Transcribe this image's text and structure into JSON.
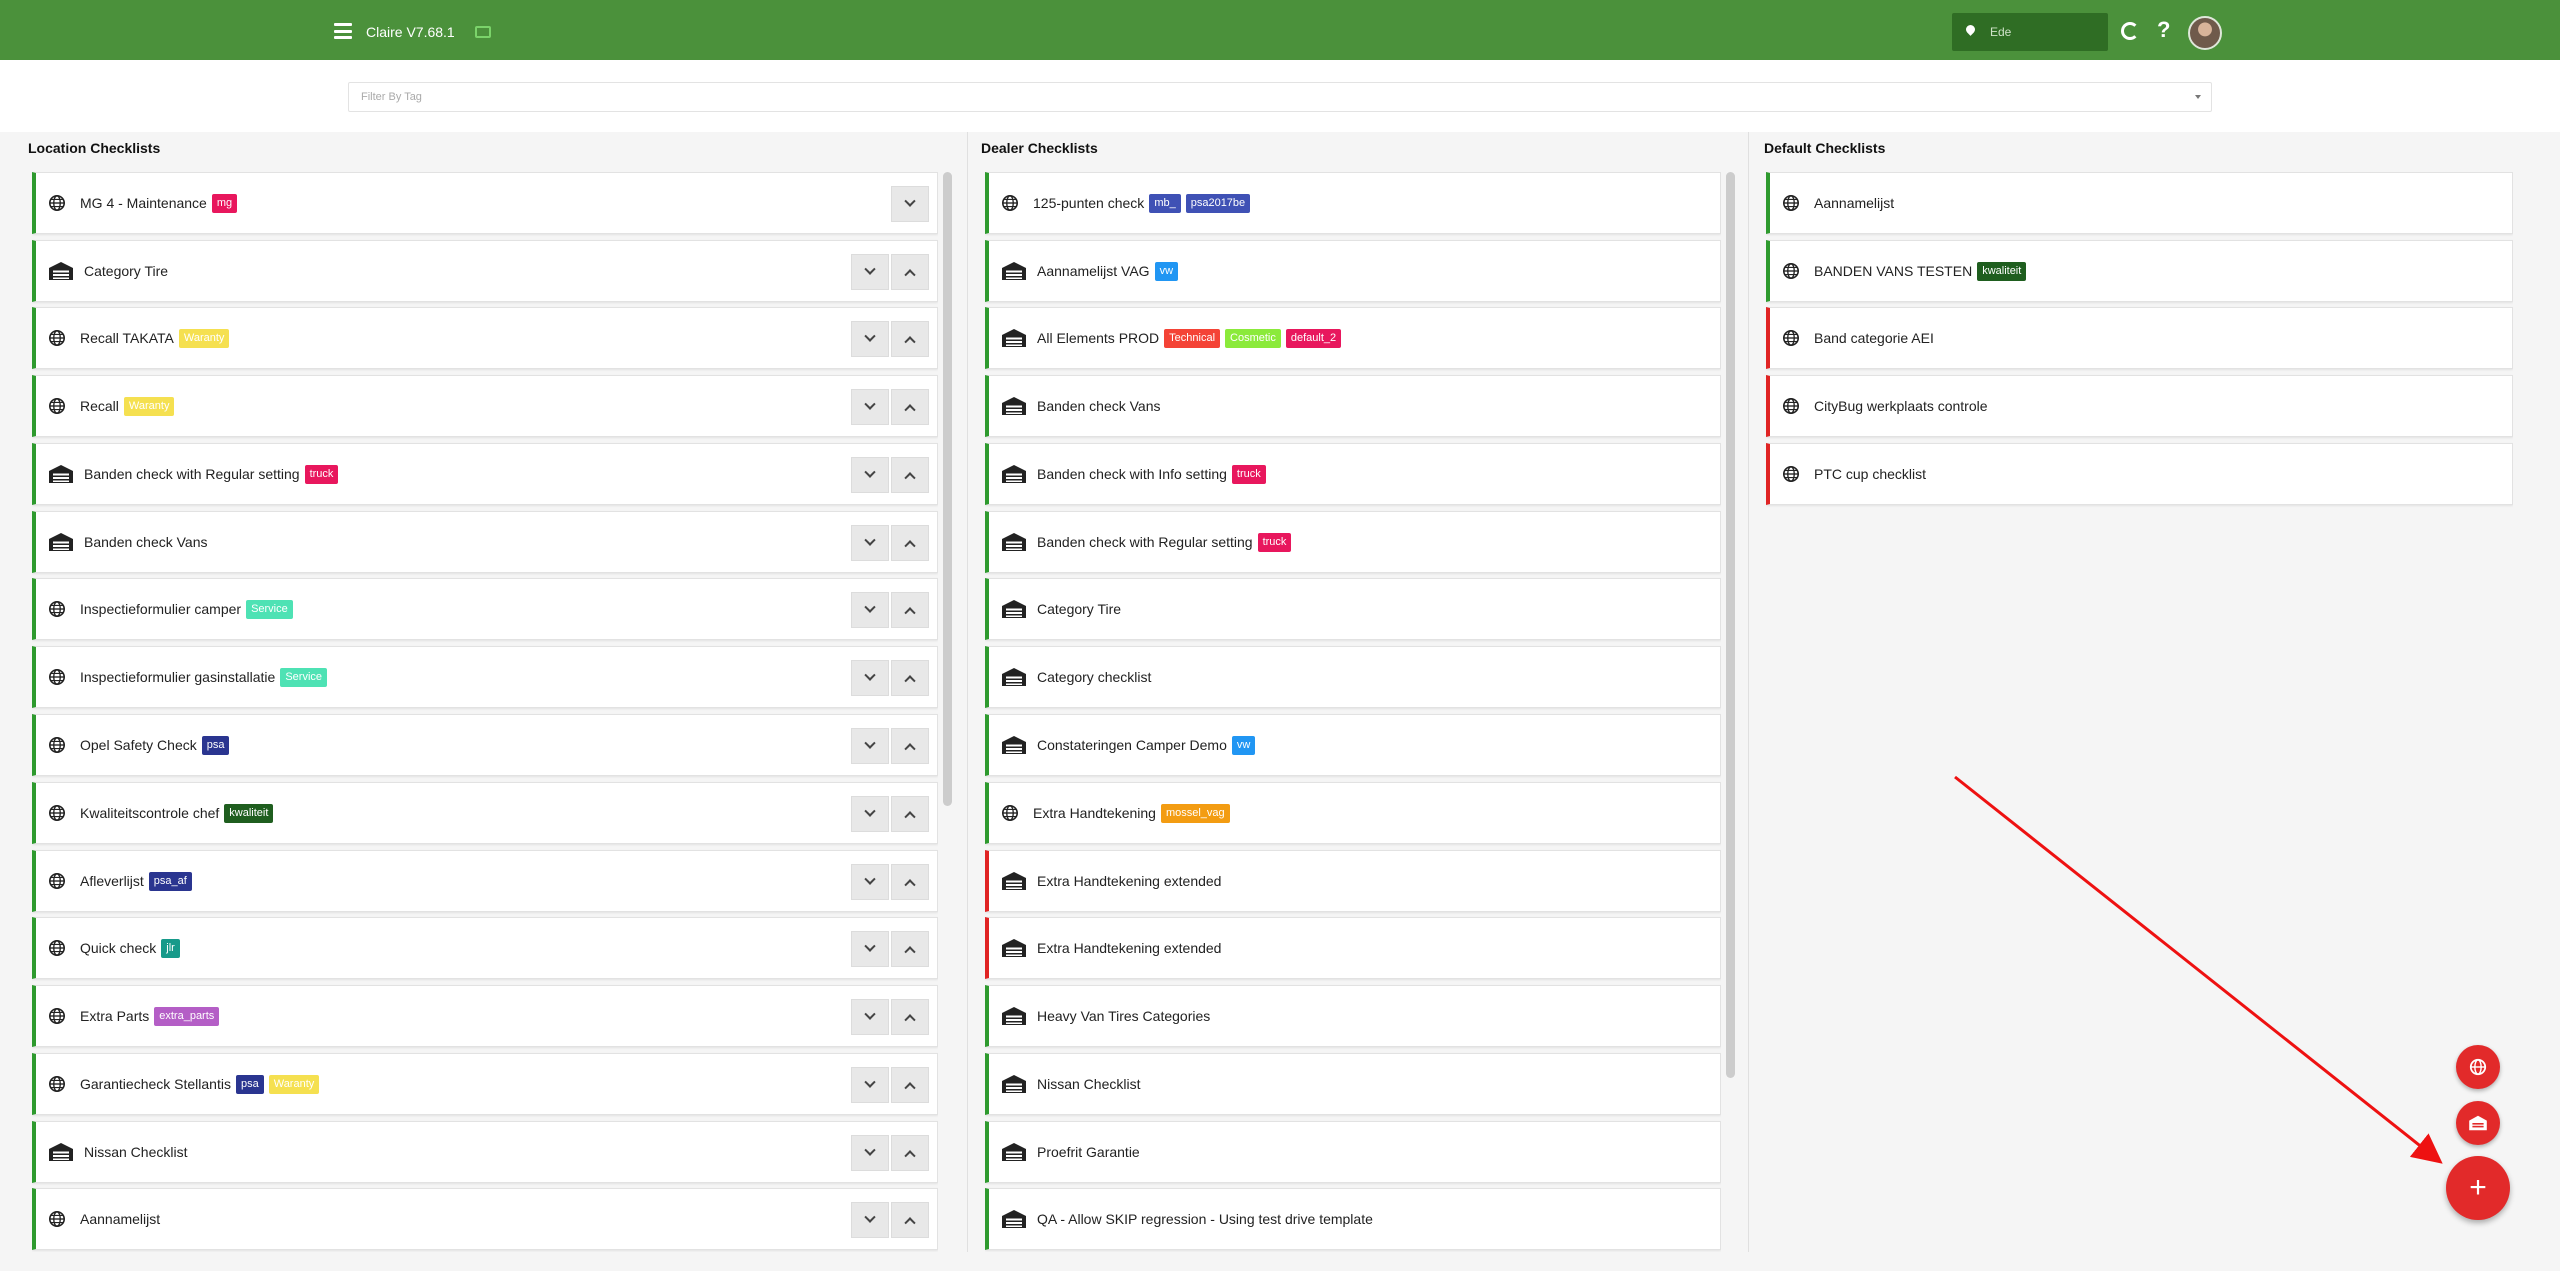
{
  "header": {
    "app_title": "Claire V7.68.1",
    "location": "Ede",
    "help_label": "?"
  },
  "filter": {
    "placeholder": "Filter By Tag"
  },
  "colors": {
    "header_bg": "#4b913b",
    "status_green": "#2e9a2e",
    "status_red": "#e02424",
    "fab": "#e22a2a"
  },
  "columns": [
    {
      "title": "Location Checklists",
      "items": [
        {
          "icon": "globe",
          "name": "MG 4 - Maintenance",
          "status": "green",
          "tags": [
            {
              "label": "mg",
              "color": "#e8175d"
            }
          ],
          "buttons": "down-only"
        },
        {
          "icon": "garage",
          "name": "Category Tire",
          "status": "green",
          "tags": [],
          "buttons": "both"
        },
        {
          "icon": "globe",
          "name": "Recall TAKATA",
          "status": "green",
          "tags": [
            {
              "label": "Waranty",
              "color": "#f5e050"
            }
          ],
          "buttons": "both"
        },
        {
          "icon": "globe",
          "name": "Recall",
          "status": "green",
          "tags": [
            {
              "label": "Waranty",
              "color": "#f5e050"
            }
          ],
          "buttons": "both"
        },
        {
          "icon": "garage",
          "name": "Banden check with Regular setting",
          "status": "green",
          "tags": [
            {
              "label": "truck",
              "color": "#e8175d"
            }
          ],
          "buttons": "both"
        },
        {
          "icon": "garage",
          "name": "Banden check Vans",
          "status": "green",
          "tags": [],
          "buttons": "both"
        },
        {
          "icon": "globe",
          "name": "Inspectieformulier camper",
          "status": "green",
          "tags": [
            {
              "label": "Service",
              "color": "#4ee2b4"
            }
          ],
          "buttons": "both"
        },
        {
          "icon": "globe",
          "name": "Inspectieformulier gasinstallatie",
          "status": "green",
          "tags": [
            {
              "label": "Service",
              "color": "#4ee2b4"
            }
          ],
          "buttons": "both"
        },
        {
          "icon": "globe",
          "name": "Opel Safety Check",
          "status": "green",
          "tags": [
            {
              "label": "psa",
              "color": "#2a3590"
            }
          ],
          "buttons": "both"
        },
        {
          "icon": "globe",
          "name": "Kwaliteitscontrole chef",
          "status": "green",
          "tags": [
            {
              "label": "kwaliteit",
              "color": "#1f5e1f"
            }
          ],
          "buttons": "both"
        },
        {
          "icon": "globe",
          "name": "Afleverlijst",
          "status": "green",
          "tags": [
            {
              "label": "psa_af",
              "color": "#2a3590"
            }
          ],
          "buttons": "both"
        },
        {
          "icon": "globe",
          "name": "Quick check",
          "status": "green",
          "tags": [
            {
              "label": "jlr",
              "color": "#179a8a"
            }
          ],
          "buttons": "both"
        },
        {
          "icon": "globe",
          "name": "Extra Parts",
          "status": "green",
          "tags": [
            {
              "label": "extra_parts",
              "color": "#b45ec6"
            }
          ],
          "buttons": "both"
        },
        {
          "icon": "globe",
          "name": "Garantiecheck Stellantis",
          "status": "green",
          "tags": [
            {
              "label": "psa",
              "color": "#2a3590"
            },
            {
              "label": "Waranty",
              "color": "#f5e050"
            }
          ],
          "buttons": "both"
        },
        {
          "icon": "garage",
          "name": "Nissan Checklist",
          "status": "green",
          "tags": [],
          "buttons": "both"
        },
        {
          "icon": "globe",
          "name": "Aannamelijst",
          "status": "green",
          "tags": [],
          "buttons": "both"
        }
      ]
    },
    {
      "title": "Dealer Checklists",
      "items": [
        {
          "icon": "globe",
          "name": "125-punten check",
          "status": "green",
          "tags": [
            {
              "label": "mb_",
              "color": "#3f51b5"
            },
            {
              "label": "psa2017be",
              "color": "#3f51b5"
            }
          ]
        },
        {
          "icon": "garage",
          "name": "Aannamelijst VAG",
          "status": "green",
          "tags": [
            {
              "label": "vw",
              "color": "#2196f3"
            }
          ]
        },
        {
          "icon": "garage",
          "name": "All Elements PROD",
          "status": "green",
          "tags": [
            {
              "label": "Technical",
              "color": "#f44336"
            },
            {
              "label": "Cosmetic",
              "color": "#8bea3b"
            },
            {
              "label": "default_2",
              "color": "#e8175d"
            }
          ]
        },
        {
          "icon": "garage",
          "name": "Banden check Vans",
          "status": "green",
          "tags": []
        },
        {
          "icon": "garage",
          "name": "Banden check with Info setting",
          "status": "green",
          "tags": [
            {
              "label": "truck",
              "color": "#e8175d"
            }
          ]
        },
        {
          "icon": "garage",
          "name": "Banden check with Regular setting",
          "status": "green",
          "tags": [
            {
              "label": "truck",
              "color": "#e8175d"
            }
          ]
        },
        {
          "icon": "garage",
          "name": "Category Tire",
          "status": "green",
          "tags": []
        },
        {
          "icon": "garage",
          "name": "Category checklist",
          "status": "green",
          "tags": []
        },
        {
          "icon": "garage",
          "name": "Constateringen Camper Demo",
          "status": "green",
          "tags": [
            {
              "label": "vw",
              "color": "#2196f3"
            }
          ]
        },
        {
          "icon": "globe",
          "name": "Extra Handtekening",
          "status": "green",
          "tags": [
            {
              "label": "mossel_vag",
              "color": "#f39c12"
            }
          ]
        },
        {
          "icon": "garage",
          "name": "Extra Handtekening extended",
          "status": "red",
          "tags": []
        },
        {
          "icon": "garage",
          "name": "Extra Handtekening extended",
          "status": "red",
          "tags": []
        },
        {
          "icon": "garage",
          "name": "Heavy Van Tires Categories",
          "status": "green",
          "tags": []
        },
        {
          "icon": "garage",
          "name": "Nissan Checklist",
          "status": "green",
          "tags": []
        },
        {
          "icon": "garage",
          "name": "Proefrit Garantie",
          "status": "green",
          "tags": []
        },
        {
          "icon": "garage",
          "name": "QA - Allow SKIP regression - Using test drive template",
          "status": "green",
          "tags": []
        }
      ]
    },
    {
      "title": "Default Checklists",
      "items": [
        {
          "icon": "globe",
          "name": "Aannamelijst",
          "status": "green",
          "tags": []
        },
        {
          "icon": "globe",
          "name": "BANDEN VANS TESTEN",
          "status": "green",
          "tags": [
            {
              "label": "kwaliteit",
              "color": "#1f5e1f"
            }
          ]
        },
        {
          "icon": "globe",
          "name": "Band categorie AEI",
          "status": "red",
          "tags": []
        },
        {
          "icon": "globe",
          "name": "CityBug werkplaats controle",
          "status": "red",
          "tags": []
        },
        {
          "icon": "globe",
          "name": "PTC cup checklist",
          "status": "red",
          "tags": []
        }
      ]
    }
  ],
  "fab": {
    "add_label": "+"
  }
}
